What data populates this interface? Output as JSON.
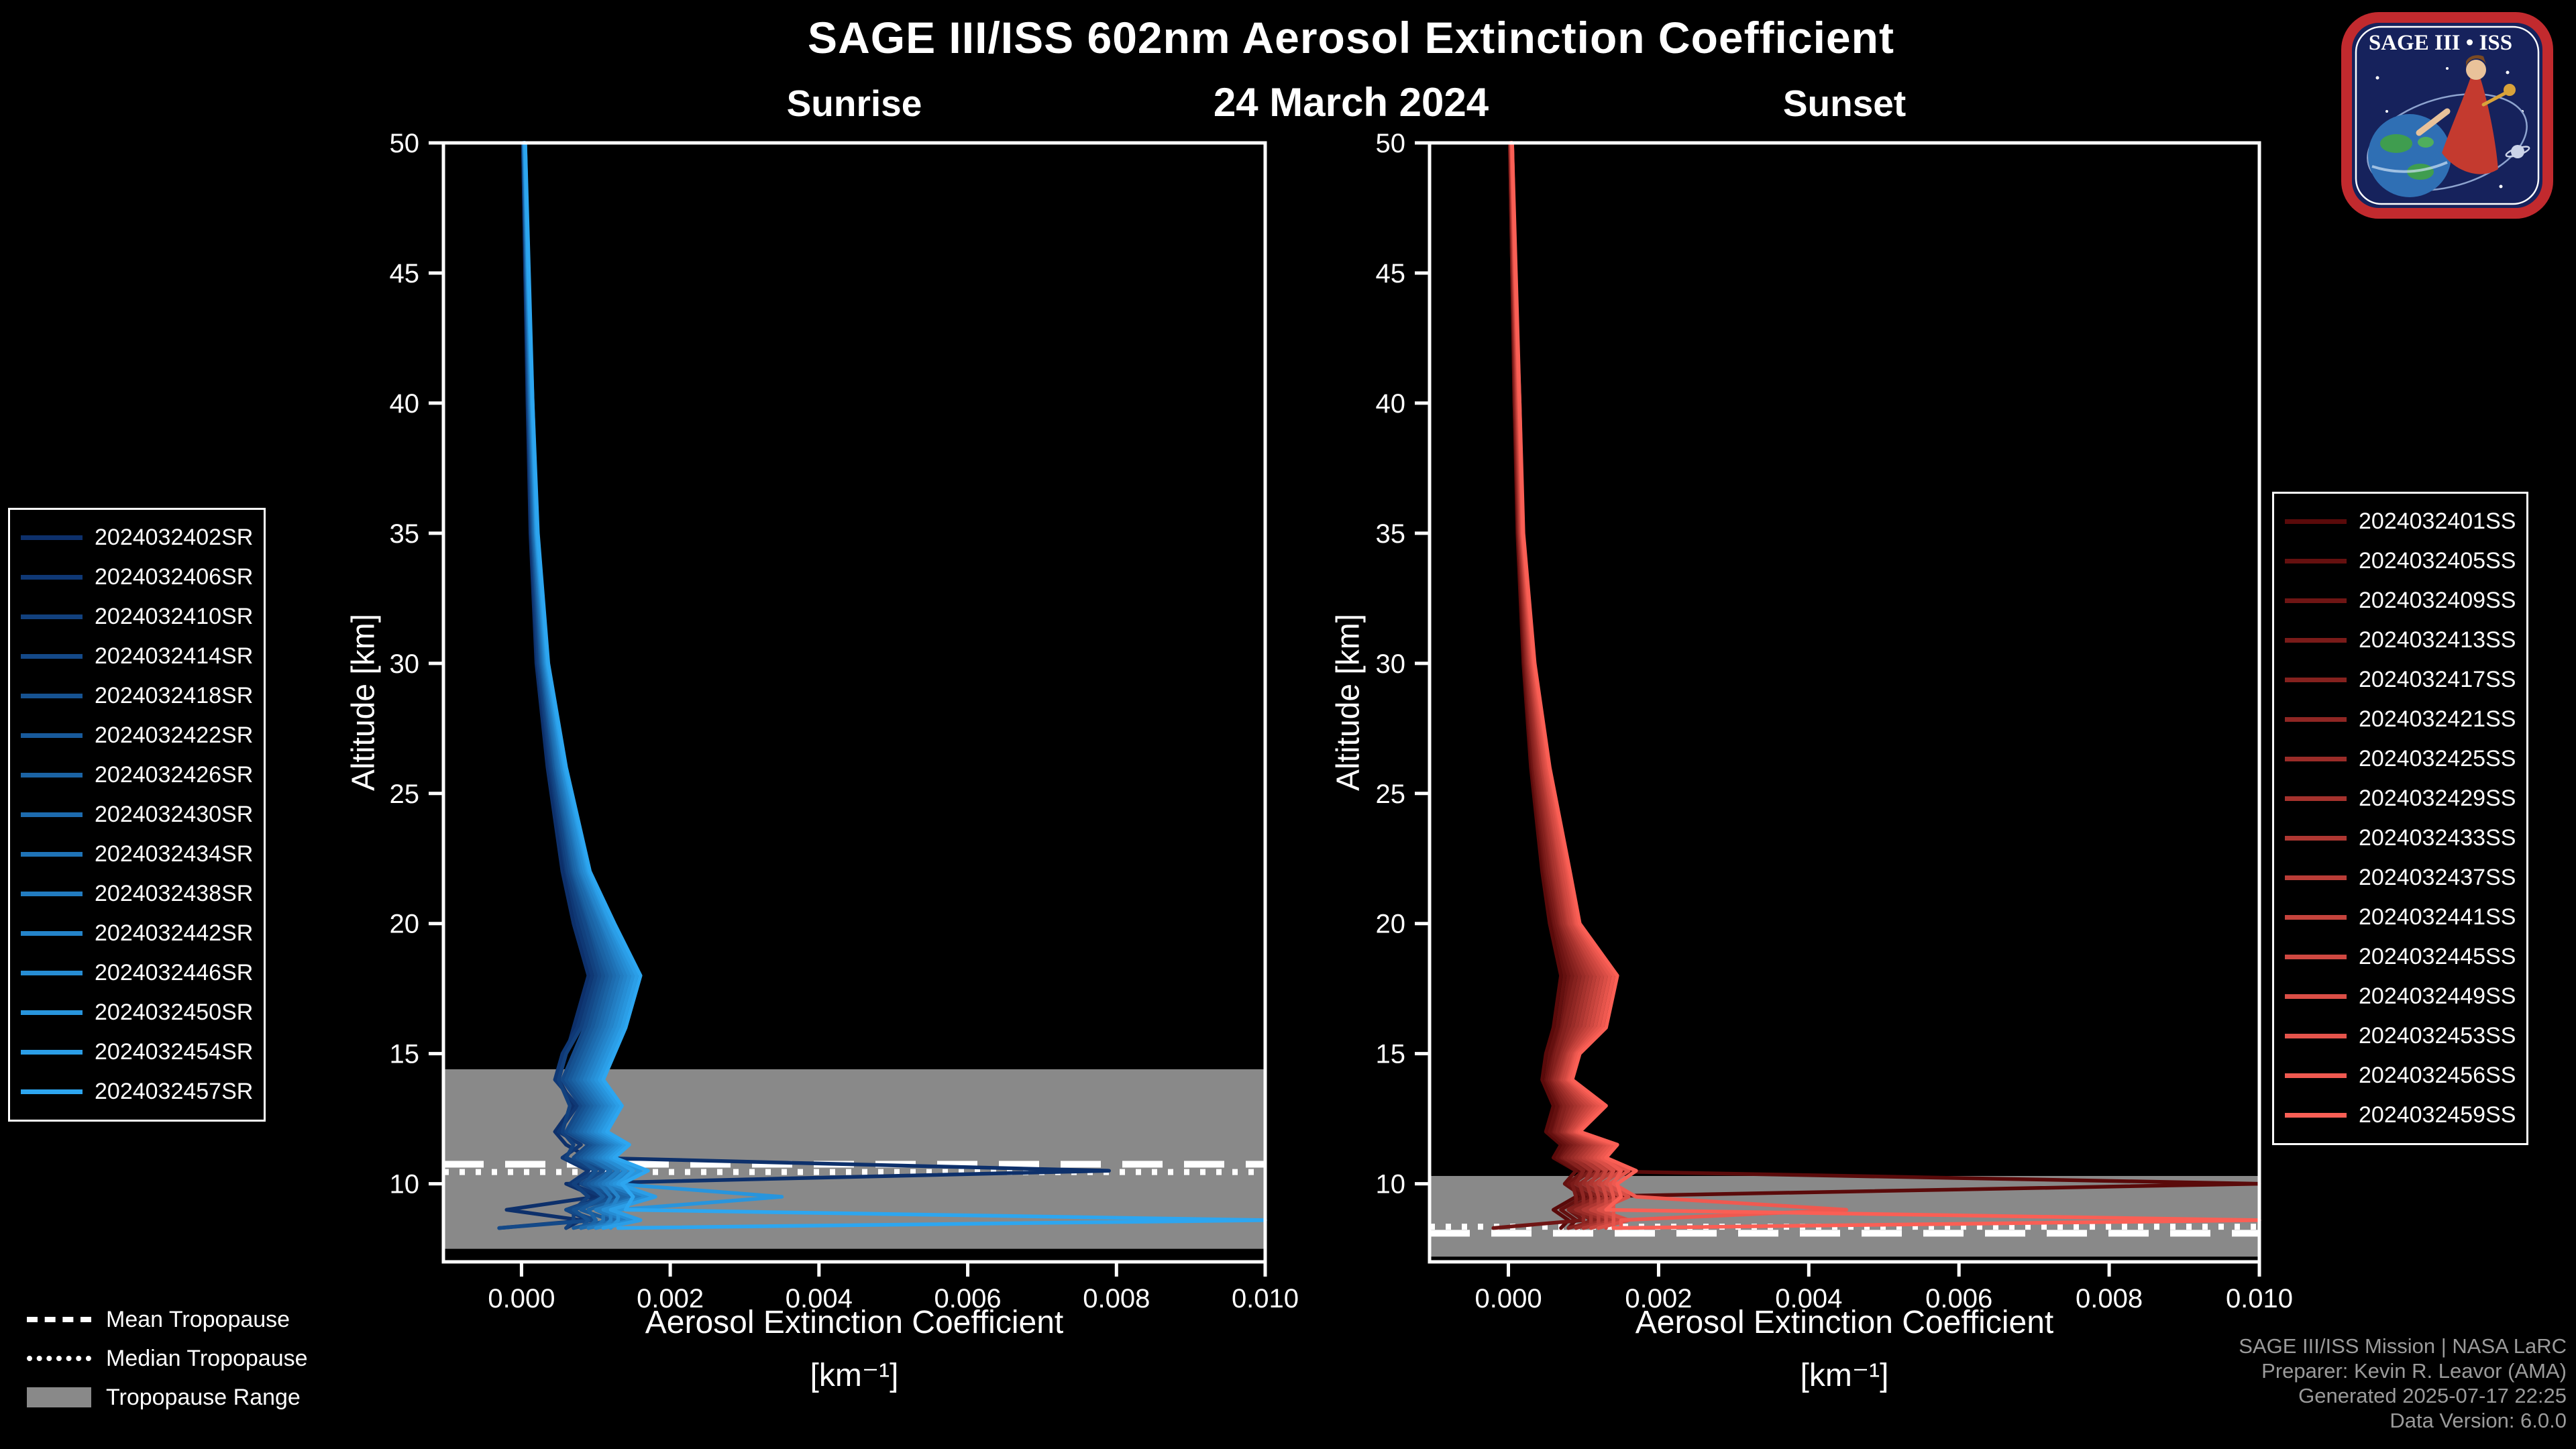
{
  "header": {
    "title": "SAGE III/ISS 602nm Aerosol Extinction Coefficient",
    "date": "24 March 2024"
  },
  "logo": {
    "wordmark": "SAGE III • ISS"
  },
  "credits": {
    "lines": [
      "SAGE III/ISS Mission | NASA LaRC",
      "Preparer: Kevin R. Leavor (AMA)",
      "Generated 2025-07-17 22:25",
      "Data Version: 6.0.0"
    ]
  },
  "tropopause_legend": {
    "items": [
      {
        "style": "dashed",
        "label": "Mean Tropopause"
      },
      {
        "style": "dotted",
        "label": "Median Tropopause"
      },
      {
        "style": "band",
        "label": "Tropopause Range"
      }
    ]
  },
  "chart_data": {
    "type": "line",
    "title": "SAGE III/ISS 602nm Aerosol Extinction Coefficient",
    "subtitle": "24 March 2024",
    "xlabel": "Aerosol Extinction Coefficient",
    "xlabel_units": "[km⁻¹]",
    "ylabel": "Altitude [km]",
    "xlim": [
      -0.00105,
      0.01
    ],
    "ylim": [
      7,
      50
    ],
    "xticks": [
      0,
      0.002,
      0.004,
      0.006,
      0.008,
      0.01
    ],
    "xtick_labels": [
      "0.000",
      "0.002",
      "0.004",
      "0.006",
      "0.008",
      "0.010"
    ],
    "yticks": [
      10,
      15,
      20,
      25,
      30,
      35,
      40,
      45,
      50
    ],
    "grid": false,
    "legend_position": "outside",
    "band_color": "#898989",
    "ext_scale": 0.001,
    "values_unit": "multiples of ext_scale, km^-1",
    "alt_grid": [
      50,
      45,
      40,
      35,
      30,
      26,
      22,
      20,
      18,
      16,
      15,
      14,
      13,
      12,
      11.5,
      11,
      10.5,
      10,
      9.5,
      9,
      8.6,
      8.3
    ],
    "tropopause": {
      "sunrise": {
        "mean": 10.75,
        "median": 10.45,
        "range": [
          7.5,
          14.4
        ]
      },
      "sunset": {
        "mean": 8.1,
        "median": 8.35,
        "range": [
          7.2,
          10.3
        ]
      }
    },
    "panels": [
      {
        "id": "sunrise",
        "title": "Sunrise",
        "series": [
          {
            "name": "2024032402SR",
            "color": "#0d306b",
            "values": [
              0.02,
              0.05,
              0.08,
              0.12,
              0.2,
              0.35,
              0.55,
              0.7,
              0.9,
              0.7,
              0.6,
              0.5,
              0.7,
              0.45,
              0.6,
              0.9,
              7.9,
              0.6,
              1.0,
              -0.2,
              0.8,
              0.6
            ]
          },
          {
            "name": "2024032406SR",
            "color": "#0f3875",
            "values": [
              0.02,
              0.05,
              0.09,
              0.13,
              0.22,
              0.38,
              0.6,
              0.75,
              0.95,
              0.75,
              0.55,
              0.45,
              0.75,
              0.5,
              0.8,
              0.55,
              0.9,
              0.65,
              1.1,
              0.6,
              0.9,
              -0.3
            ]
          },
          {
            "name": "2024032410SR",
            "color": "#12417e",
            "values": [
              0.02,
              0.06,
              0.09,
              0.14,
              0.23,
              0.4,
              0.62,
              0.8,
              1.0,
              0.8,
              0.6,
              0.5,
              0.65,
              0.55,
              0.7,
              0.6,
              1.0,
              0.7,
              0.9,
              0.7,
              0.7,
              0.6
            ]
          },
          {
            "name": "2024032414SR",
            "color": "#144988",
            "values": [
              0.03,
              0.06,
              0.1,
              0.15,
              0.25,
              0.42,
              0.65,
              0.85,
              1.05,
              0.85,
              0.7,
              0.55,
              0.8,
              0.6,
              0.9,
              0.7,
              1.1,
              0.8,
              1.2,
              0.6,
              1.0,
              -0.3
            ]
          },
          {
            "name": "2024032418SR",
            "color": "#165291",
            "values": [
              0.03,
              0.06,
              0.1,
              0.15,
              0.26,
              0.44,
              0.68,
              0.9,
              1.1,
              0.9,
              0.75,
              0.6,
              0.85,
              0.65,
              0.95,
              0.75,
              1.0,
              0.85,
              1.3,
              0.7,
              0.9,
              0.8
            ]
          },
          {
            "name": "2024032422SR",
            "color": "#185a9b",
            "values": [
              0.03,
              0.07,
              0.11,
              0.16,
              0.27,
              0.45,
              0.7,
              0.92,
              1.15,
              0.95,
              0.8,
              0.65,
              0.9,
              0.7,
              1.0,
              0.8,
              1.2,
              0.9,
              1.1,
              0.8,
              1.2,
              0.7
            ]
          },
          {
            "name": "2024032426SR",
            "color": "#1b63a4",
            "values": [
              0.03,
              0.07,
              0.11,
              0.17,
              0.28,
              0.47,
              0.72,
              0.95,
              1.2,
              1.0,
              0.85,
              0.7,
              0.95,
              0.75,
              1.05,
              0.85,
              1.3,
              0.95,
              1.4,
              0.9,
              1.0,
              0.9
            ]
          },
          {
            "name": "2024032430SR",
            "color": "#1d6bae",
            "values": [
              0.03,
              0.07,
              0.12,
              0.17,
              0.29,
              0.48,
              0.75,
              1.0,
              1.25,
              1.05,
              0.9,
              0.75,
              1.0,
              0.8,
              1.1,
              0.9,
              1.2,
              1.0,
              1.5,
              1.0,
              1.3,
              0.8
            ]
          },
          {
            "name": "2024032434SR",
            "color": "#1f73b7",
            "values": [
              0.04,
              0.08,
              0.12,
              0.18,
              0.3,
              0.5,
              0.78,
              1.05,
              1.3,
              1.1,
              0.95,
              0.8,
              1.05,
              0.85,
              1.15,
              0.95,
              1.4,
              1.05,
              1.2,
              1.1,
              1.1,
              1.0
            ]
          },
          {
            "name": "2024032438SR",
            "color": "#227cc1",
            "values": [
              0.04,
              0.08,
              0.13,
              0.19,
              0.31,
              0.52,
              0.8,
              1.08,
              1.35,
              1.15,
              1.0,
              0.85,
              1.1,
              0.9,
              1.2,
              1.0,
              1.3,
              1.1,
              1.6,
              1.0,
              1.4,
              0.9
            ]
          },
          {
            "name": "2024032442SR",
            "color": "#2484ca",
            "values": [
              0.04,
              0.08,
              0.13,
              0.19,
              0.32,
              0.54,
              0.82,
              1.1,
              1.4,
              1.2,
              1.05,
              0.9,
              1.15,
              0.95,
              1.25,
              1.05,
              1.5,
              1.15,
              1.3,
              1.2,
              1.2,
              1.1
            ]
          },
          {
            "name": "2024032446SR",
            "color": "#268dd4",
            "values": [
              0.04,
              0.09,
              0.14,
              0.2,
              0.33,
              0.55,
              0.85,
              1.15,
              1.45,
              1.25,
              1.1,
              0.95,
              1.2,
              1.0,
              1.3,
              1.1,
              1.4,
              1.2,
              1.7,
              1.1,
              1.5,
              1.0
            ]
          },
          {
            "name": "2024032450SR",
            "color": "#2895dd",
            "values": [
              0.04,
              0.09,
              0.14,
              0.2,
              0.34,
              0.57,
              0.88,
              1.18,
              1.5,
              1.3,
              1.15,
              1.0,
              1.25,
              1.05,
              1.35,
              1.15,
              1.6,
              1.25,
              3.5,
              1.3,
              1.3,
              1.2
            ]
          },
          {
            "name": "2024032454SR",
            "color": "#2b9ee7",
            "values": [
              0.05,
              0.09,
              0.15,
              0.21,
              0.35,
              0.58,
              0.9,
              1.2,
              1.55,
              1.35,
              1.2,
              1.05,
              1.3,
              1.1,
              1.4,
              1.2,
              1.5,
              1.3,
              1.8,
              1.2,
              1.6,
              1.1
            ]
          },
          {
            "name": "2024032457SR",
            "color": "#2da6f0",
            "values": [
              0.05,
              0.1,
              0.15,
              0.22,
              0.36,
              0.6,
              0.92,
              1.25,
              1.6,
              1.4,
              1.25,
              1.1,
              1.35,
              1.15,
              1.45,
              1.25,
              1.7,
              1.35,
              1.5,
              1.4,
              10.0,
              1.3
            ]
          }
        ]
      },
      {
        "id": "sunset",
        "title": "Sunset",
        "series": [
          {
            "name": "2024032401SS",
            "color": "#5a0a0a",
            "values": [
              0.02,
              0.05,
              0.08,
              0.12,
              0.2,
              0.3,
              0.45,
              0.55,
              0.7,
              0.6,
              0.5,
              0.45,
              0.6,
              0.5,
              0.7,
              0.6,
              0.9,
              10.0,
              0.9,
              0.6,
              0.8,
              0.7
            ]
          },
          {
            "name": "2024032405SS",
            "color": "#65100f",
            "values": [
              0.02,
              0.05,
              0.08,
              0.13,
              0.21,
              0.32,
              0.48,
              0.6,
              0.75,
              0.65,
              0.55,
              0.5,
              0.65,
              0.55,
              0.75,
              0.65,
              0.9,
              0.75,
              1.0,
              0.7,
              0.9,
              0.8
            ]
          },
          {
            "name": "2024032409SS",
            "color": "#6f1514",
            "values": [
              0.02,
              0.05,
              0.09,
              0.13,
              0.22,
              0.33,
              0.5,
              0.62,
              0.8,
              0.7,
              0.6,
              0.52,
              0.7,
              0.6,
              0.8,
              0.7,
              1.0,
              0.8,
              1.1,
              0.8,
              1.0,
              -0.2
            ]
          },
          {
            "name": "2024032413SS",
            "color": "#7a1b19",
            "values": [
              0.03,
              0.06,
              0.09,
              0.14,
              0.23,
              0.35,
              0.52,
              0.65,
              0.85,
              0.72,
              0.62,
              0.55,
              0.72,
              0.62,
              0.85,
              0.72,
              1.1,
              0.85,
              0.9,
              0.9,
              1.1,
              0.9
            ]
          },
          {
            "name": "2024032417SS",
            "color": "#85211e",
            "values": [
              0.03,
              0.06,
              0.1,
              0.14,
              0.24,
              0.36,
              0.55,
              0.68,
              0.9,
              0.75,
              0.65,
              0.58,
              0.75,
              0.65,
              0.9,
              0.75,
              1.0,
              0.9,
              1.2,
              0.8,
              1.2,
              0.8
            ]
          },
          {
            "name": "2024032421SS",
            "color": "#8f2623",
            "values": [
              0.03,
              0.06,
              0.1,
              0.15,
              0.25,
              0.38,
              0.58,
              0.7,
              0.95,
              0.8,
              0.7,
              0.6,
              0.8,
              0.7,
              0.95,
              0.8,
              1.2,
              0.95,
              1.0,
              1.0,
              1.0,
              1.0
            ]
          },
          {
            "name": "2024032425SS",
            "color": "#9a2c28",
            "values": [
              0.03,
              0.07,
              0.11,
              0.15,
              0.26,
              0.4,
              0.6,
              0.72,
              1.0,
              0.85,
              0.72,
              0.62,
              0.85,
              0.72,
              1.0,
              0.85,
              1.1,
              1.0,
              1.3,
              0.9,
              1.3,
              0.9
            ]
          },
          {
            "name": "2024032429SS",
            "color": "#a5322d",
            "values": [
              0.03,
              0.07,
              0.11,
              0.16,
              0.27,
              0.42,
              0.62,
              0.75,
              1.05,
              0.9,
              0.75,
              0.65,
              0.9,
              0.75,
              1.05,
              0.9,
              1.3,
              1.05,
              1.1,
              1.1,
              1.1,
              1.1
            ]
          },
          {
            "name": "2024032433SS",
            "color": "#af3732",
            "values": [
              0.04,
              0.07,
              0.12,
              0.16,
              0.28,
              0.44,
              0.65,
              0.78,
              1.1,
              0.95,
              0.78,
              0.68,
              0.95,
              0.78,
              1.1,
              0.95,
              1.2,
              1.1,
              1.4,
              1.0,
              1.4,
              1.0
            ]
          },
          {
            "name": "2024032437SS",
            "color": "#ba3d37",
            "values": [
              0.04,
              0.08,
              0.12,
              0.17,
              0.29,
              0.45,
              0.68,
              0.8,
              1.15,
              1.0,
              0.8,
              0.7,
              1.0,
              0.8,
              1.15,
              1.0,
              1.4,
              1.15,
              1.2,
              1.2,
              1.2,
              1.2
            ]
          },
          {
            "name": "2024032441SS",
            "color": "#c5433c",
            "values": [
              0.04,
              0.08,
              0.13,
              0.17,
              0.3,
              0.47,
              0.7,
              0.82,
              1.2,
              1.05,
              0.82,
              0.72,
              1.05,
              0.82,
              1.2,
              1.05,
              1.3,
              1.2,
              1.5,
              1.1,
              1.5,
              1.1
            ]
          },
          {
            "name": "2024032445SS",
            "color": "#cf4841",
            "values": [
              0.04,
              0.08,
              0.13,
              0.18,
              0.31,
              0.48,
              0.72,
              0.85,
              1.25,
              1.1,
              0.85,
              0.75,
              1.1,
              0.85,
              1.25,
              1.1,
              1.5,
              1.25,
              1.3,
              1.3,
              1.3,
              1.3
            ]
          },
          {
            "name": "2024032449SS",
            "color": "#da4e46",
            "values": [
              0.04,
              0.09,
              0.14,
              0.18,
              0.32,
              0.5,
              0.75,
              0.88,
              1.3,
              1.15,
              0.88,
              0.78,
              1.15,
              0.88,
              1.3,
              1.15,
              1.4,
              1.3,
              1.6,
              1.2,
              1.6,
              1.2
            ]
          },
          {
            "name": "2024032453SS",
            "color": "#e5544b",
            "values": [
              0.05,
              0.09,
              0.14,
              0.19,
              0.33,
              0.52,
              0.78,
              0.9,
              1.35,
              1.2,
              0.9,
              0.8,
              1.2,
              0.9,
              1.35,
              1.2,
              1.6,
              1.35,
              1.4,
              1.4,
              1.4,
              1.4
            ]
          },
          {
            "name": "2024032456SS",
            "color": "#ef5950",
            "values": [
              0.05,
              0.09,
              0.15,
              0.19,
              0.34,
              0.54,
              0.8,
              0.92,
              1.4,
              1.25,
              0.92,
              0.82,
              1.25,
              0.92,
              1.4,
              1.25,
              1.5,
              1.4,
              1.7,
              4.5,
              1.5,
              1.5
            ]
          },
          {
            "name": "2024032459SS",
            "color": "#fa5f55",
            "values": [
              0.05,
              0.1,
              0.15,
              0.2,
              0.35,
              0.55,
              0.82,
              0.95,
              1.45,
              1.3,
              0.95,
              0.85,
              1.3,
              0.95,
              1.45,
              1.3,
              1.7,
              1.45,
              1.5,
              1.3,
              10.0,
              1.4
            ]
          }
        ]
      }
    ]
  }
}
